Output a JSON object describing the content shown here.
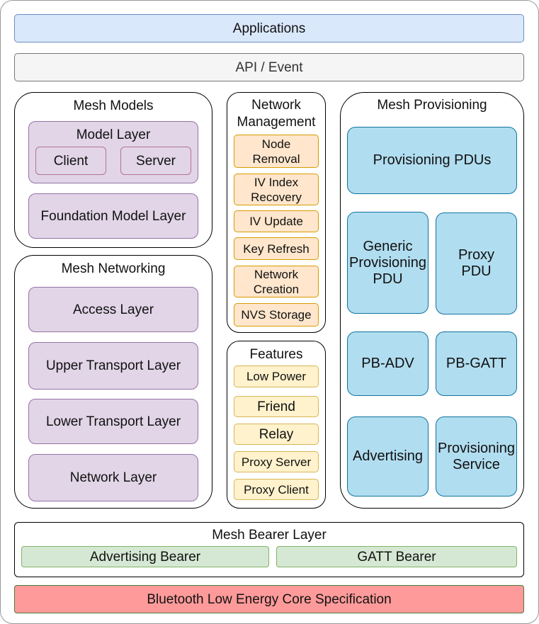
{
  "applications": "Applications",
  "api": "API / Event",
  "mesh_models": {
    "title": "Mesh Models",
    "model_layer": "Model Layer",
    "client": "Client",
    "server": "Server",
    "foundation": "Foundation Model Layer"
  },
  "mesh_networking": {
    "title": "Mesh Networking",
    "layers": [
      "Access Layer",
      "Upper Transport Layer",
      "Lower Transport Layer",
      "Network Layer"
    ]
  },
  "network_management": {
    "title": "Network\nManagement",
    "items": [
      "Node\nRemoval",
      "IV Index\nRecovery",
      "IV Update",
      "Key Refresh",
      "Network\nCreation",
      "NVS Storage"
    ]
  },
  "features": {
    "title": "Features",
    "items": [
      "Low Power",
      "Friend",
      "Relay",
      "Proxy Server",
      "Proxy Client"
    ]
  },
  "mesh_provisioning": {
    "title": "Mesh Provisioning",
    "items": [
      "Provisioning PDUs",
      "Generic\nProvisioning\nPDU",
      "Proxy\nPDU",
      "PB-ADV",
      "PB-GATT",
      "Advertising",
      "Provisioning\nService"
    ]
  },
  "bearer": {
    "title": "Mesh Bearer Layer",
    "advertising": "Advertising Bearer",
    "gatt": "GATT Bearer"
  },
  "ble": "Bluetooth Low Energy Core Specification"
}
